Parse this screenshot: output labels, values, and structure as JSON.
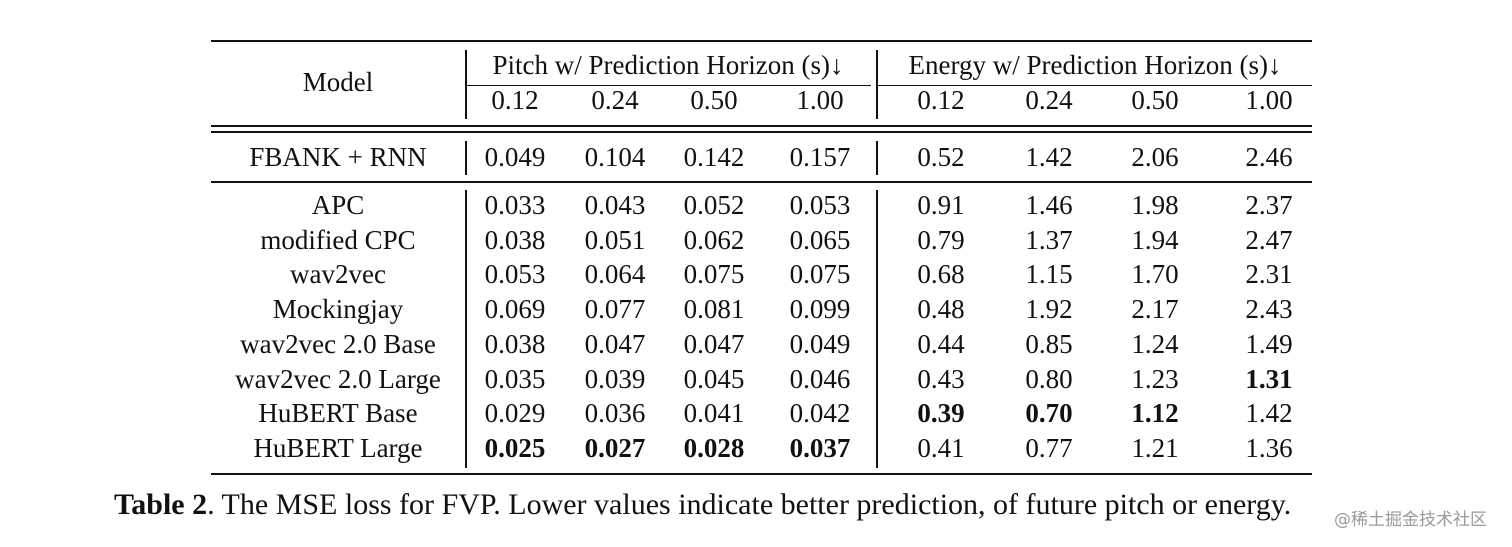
{
  "table": {
    "model_header": "Model",
    "pitch_header": "Pitch w/ Prediction Horizon (s)↓",
    "energy_header": "Energy w/ Prediction Horizon (s)↓",
    "horizons": [
      "0.12",
      "0.24",
      "0.50",
      "1.00"
    ],
    "baseline": {
      "model": "FBANK + RNN",
      "pitch": [
        "0.049",
        "0.104",
        "0.142",
        "0.157"
      ],
      "energy": [
        "0.52",
        "1.42",
        "2.06",
        "2.46"
      ]
    },
    "rows": [
      {
        "model": "APC",
        "pitch": [
          "0.033",
          "0.043",
          "0.052",
          "0.053"
        ],
        "energy": [
          "0.91",
          "1.46",
          "1.98",
          "2.37"
        ]
      },
      {
        "model": "modified CPC",
        "pitch": [
          "0.038",
          "0.051",
          "0.062",
          "0.065"
        ],
        "energy": [
          "0.79",
          "1.37",
          "1.94",
          "2.47"
        ]
      },
      {
        "model": "wav2vec",
        "pitch": [
          "0.053",
          "0.064",
          "0.075",
          "0.075"
        ],
        "energy": [
          "0.68",
          "1.15",
          "1.70",
          "2.31"
        ]
      },
      {
        "model": "Mockingjay",
        "pitch": [
          "0.069",
          "0.077",
          "0.081",
          "0.099"
        ],
        "energy": [
          "0.48",
          "1.92",
          "2.17",
          "2.43"
        ]
      },
      {
        "model": "wav2vec 2.0 Base",
        "pitch": [
          "0.038",
          "0.047",
          "0.047",
          "0.049"
        ],
        "energy": [
          "0.44",
          "0.85",
          "1.24",
          "1.49"
        ]
      },
      {
        "model": "wav2vec 2.0 Large",
        "pitch": [
          "0.035",
          "0.039",
          "0.045",
          "0.046"
        ],
        "energy": [
          "0.43",
          "0.80",
          "1.23",
          "1.31"
        ]
      },
      {
        "model": "HuBERT Base",
        "pitch": [
          "0.029",
          "0.036",
          "0.041",
          "0.042"
        ],
        "energy": [
          "0.39",
          "0.70",
          "1.12",
          "1.42"
        ]
      },
      {
        "model": "HuBERT Large",
        "pitch": [
          "0.025",
          "0.027",
          "0.028",
          "0.037"
        ],
        "energy": [
          "0.41",
          "0.77",
          "1.21",
          "1.36"
        ]
      }
    ]
  },
  "caption": {
    "label": "Table 2",
    "text": ". The MSE loss for FVP. Lower values indicate better prediction, of future pitch or energy."
  },
  "watermark": "@稀土掘金技术社区"
}
